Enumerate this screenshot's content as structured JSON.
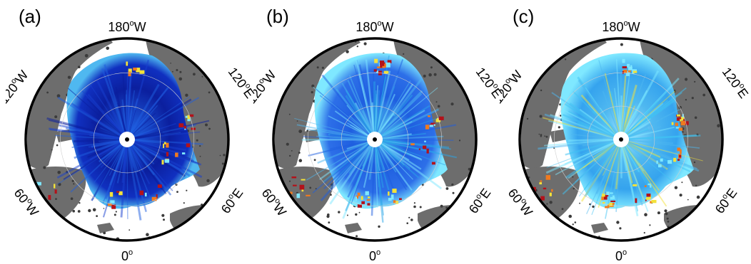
{
  "panels": [
    {
      "label": "(a)",
      "palette": "dark"
    },
    {
      "label": "(b)",
      "palette": "medium"
    },
    {
      "label": "(c)",
      "palette": "bright"
    }
  ],
  "longitude_labels": {
    "top": {
      "value": "180",
      "deg": "o",
      "dir": "W"
    },
    "left": {
      "value": "120",
      "deg": "o",
      "dir": "W"
    },
    "right": {
      "value": "120",
      "deg": "o",
      "dir": "E"
    },
    "bottom_left": {
      "value": "60",
      "deg": "o",
      "dir": "W"
    },
    "bottom_right": {
      "value": "60",
      "deg": "o",
      "dir": "E"
    },
    "bottom": {
      "value": "0",
      "deg": "o",
      "dir": ""
    }
  },
  "colors": {
    "land": "#6d6d6d",
    "ocean": "#ffffff",
    "ice_dark": "#0b1f9e",
    "ice_blue": "#1f5fe0",
    "ice_light": "#4fb8f0",
    "ice_cyan": "#7fe8ff",
    "ice_yellow": "#f3e23a",
    "ice_orange": "#f07a1e",
    "ice_red": "#b3121a",
    "frame": "#000000"
  }
}
